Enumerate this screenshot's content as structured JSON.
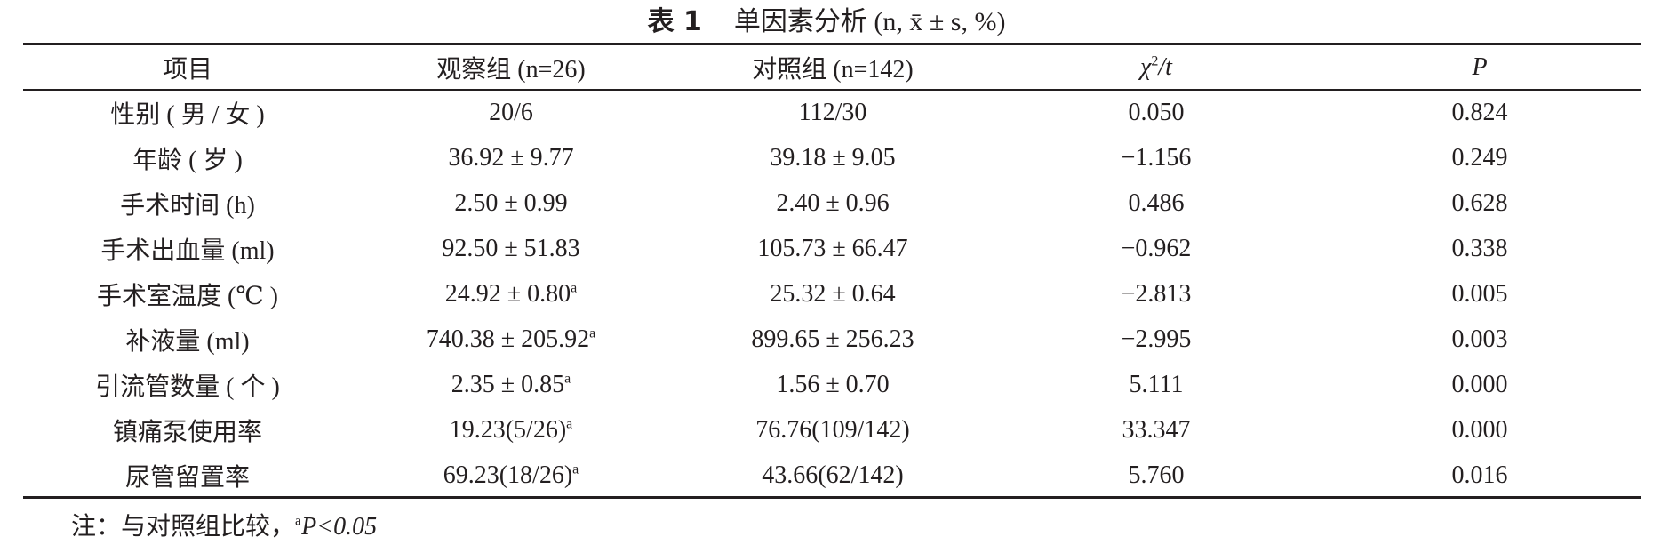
{
  "header": {
    "label": "表 1",
    "title": "单因素分析",
    "params": "(n, x̄ ± s, %)"
  },
  "table": {
    "columns": [
      "项目",
      "观察组 (n=26)",
      "对照组 (n=142)",
      {
        "text": "χ",
        "sup": "2",
        "tail": "/t"
      },
      "P"
    ],
    "rows": [
      [
        "性别 ( 男 / 女 )",
        "20/6",
        "112/30",
        "0.050",
        "0.824"
      ],
      [
        "年龄 ( 岁 )",
        "36.92 ± 9.77",
        "39.18 ± 9.05",
        "−1.156",
        "0.249"
      ],
      [
        "手术时间 (h)",
        "2.50 ± 0.99",
        "2.40 ± 0.96",
        "0.486",
        "0.628"
      ],
      [
        "手术出血量 (ml)",
        "92.50 ± 51.83",
        "105.73 ± 66.47",
        "−0.962",
        "0.338"
      ],
      [
        "手术室温度 (℃ )",
        {
          "text": "24.92 ± 0.80",
          "sup": "a"
        },
        "25.32 ± 0.64",
        "−2.813",
        "0.005"
      ],
      [
        "补液量 (ml)",
        {
          "text": "740.38 ± 205.92",
          "sup": "a"
        },
        "899.65 ± 256.23",
        "−2.995",
        "0.003"
      ],
      [
        "引流管数量 ( 个 )",
        {
          "text": "2.35 ± 0.85",
          "sup": "a"
        },
        "1.56 ± 0.70",
        "5.111",
        "0.000"
      ],
      [
        "镇痛泵使用率",
        {
          "text": "19.23(5/26)",
          "sup": "a"
        },
        "76.76(109/142)",
        "33.347",
        "0.000"
      ],
      [
        "尿管留置率",
        {
          "text": "69.23(18/26)",
          "sup": "a"
        },
        "43.66(62/142)",
        "5.760",
        "0.016"
      ]
    ]
  },
  "footnote": {
    "prefix": "注：与对照组比较，",
    "sup": "a",
    "suffix": "P<0.05"
  }
}
